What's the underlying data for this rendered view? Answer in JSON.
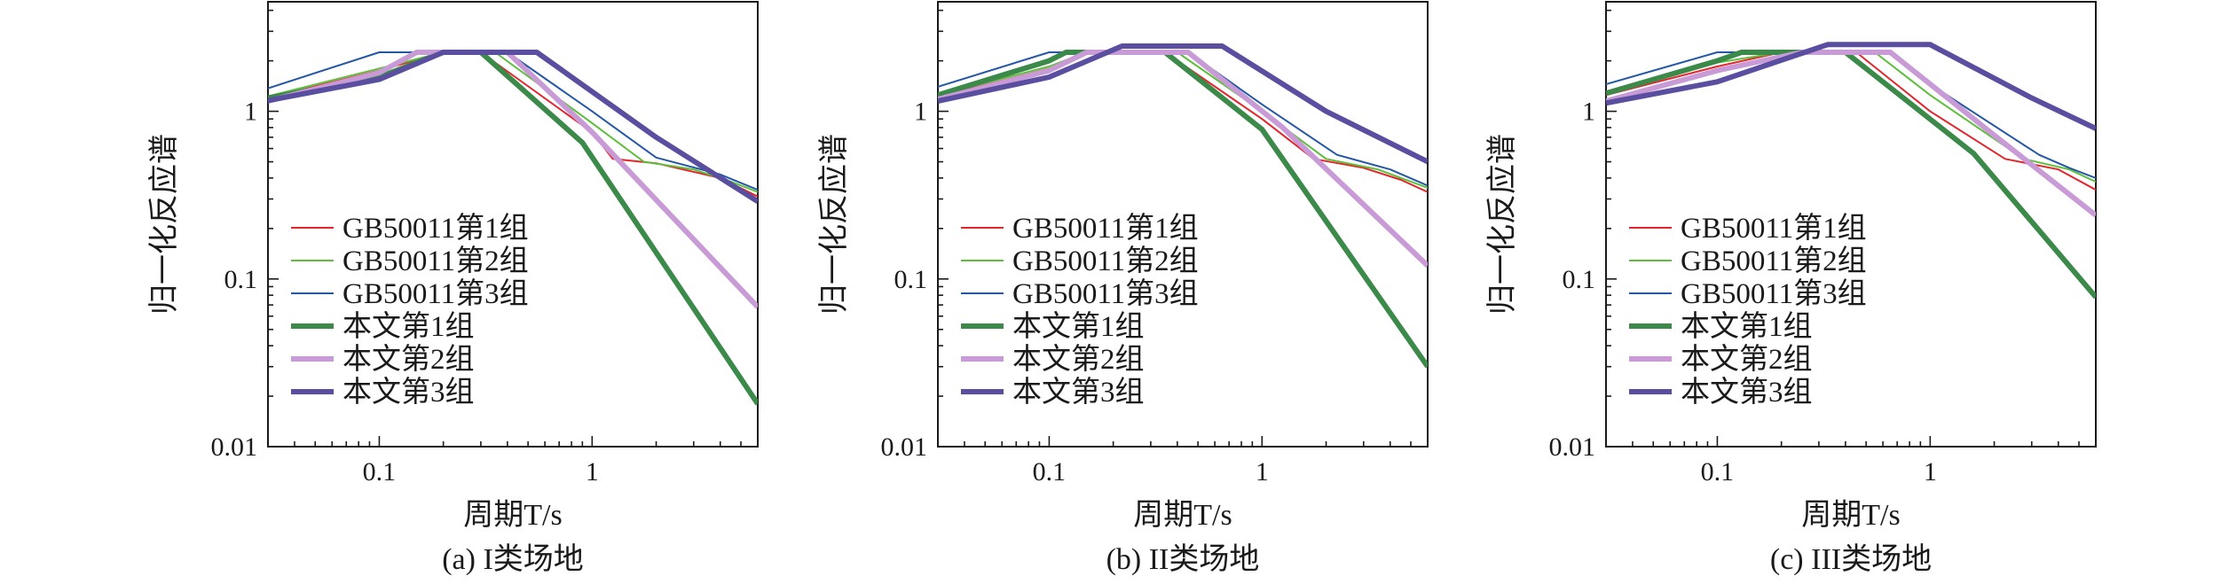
{
  "chart_data": [
    {
      "type": "line",
      "caption": "(a) I类场地",
      "xlabel": "周期T/s",
      "ylabel": "归一化反应谱",
      "xscale": "log",
      "yscale": "log",
      "xlim": [
        0.03,
        6
      ],
      "ylim": [
        0.01,
        4.5
      ],
      "xticks": [
        "0.1",
        "1"
      ],
      "yticks": [
        "0.01",
        "0.1",
        "1"
      ],
      "legend": "lower-left",
      "series": [
        {
          "name": "GB50011第1组",
          "color": "#e3262b",
          "width": 2,
          "points": [
            [
              0.03,
              1.2
            ],
            [
              0.1,
              1.75
            ],
            [
              0.2,
              2.25
            ],
            [
              0.25,
              2.25
            ],
            [
              0.3,
              2.25
            ],
            [
              1.0,
              0.75
            ],
            [
              1.25,
              0.52
            ],
            [
              2.0,
              0.49
            ],
            [
              4.0,
              0.4
            ],
            [
              6.0,
              0.31
            ]
          ]
        },
        {
          "name": "GB50011第2组",
          "color": "#5cbf3c",
          "width": 2,
          "points": [
            [
              0.03,
              1.23
            ],
            [
              0.1,
              1.8
            ],
            [
              0.2,
              2.25
            ],
            [
              0.35,
              2.25
            ],
            [
              1.0,
              0.85
            ],
            [
              1.75,
              0.5
            ],
            [
              3.0,
              0.45
            ],
            [
              4.5,
              0.38
            ],
            [
              6.0,
              0.33
            ]
          ]
        },
        {
          "name": "GB50011第3组",
          "color": "#2457a6",
          "width": 2,
          "points": [
            [
              0.03,
              1.37
            ],
            [
              0.1,
              2.25
            ],
            [
              0.4,
              2.25
            ],
            [
              1.0,
              1.0
            ],
            [
              2.0,
              0.53
            ],
            [
              4.0,
              0.42
            ],
            [
              6.0,
              0.34
            ]
          ]
        },
        {
          "name": "本文第1组",
          "color": "#3b8a4a",
          "width": 6,
          "points": [
            [
              0.03,
              1.2
            ],
            [
              0.1,
              1.6
            ],
            [
              0.2,
              2.25
            ],
            [
              0.3,
              2.25
            ],
            [
              0.9,
              0.65
            ],
            [
              6.0,
              0.018
            ]
          ]
        },
        {
          "name": "本文第2组",
          "color": "#c89ad6",
          "width": 6,
          "points": [
            [
              0.03,
              1.15
            ],
            [
              0.1,
              1.7
            ],
            [
              0.15,
              2.25
            ],
            [
              0.4,
              2.25
            ],
            [
              1.0,
              0.75
            ],
            [
              6.0,
              0.068
            ]
          ]
        },
        {
          "name": "本文第3组",
          "color": "#5a4ea0",
          "width": 6,
          "points": [
            [
              0.03,
              1.16
            ],
            [
              0.1,
              1.55
            ],
            [
              0.2,
              2.25
            ],
            [
              0.55,
              2.25
            ],
            [
              2.0,
              0.7
            ],
            [
              6.0,
              0.29
            ]
          ]
        }
      ]
    },
    {
      "type": "line",
      "caption": "(b) II类场地",
      "xlabel": "周期T/s",
      "ylabel": "归一化反应谱",
      "xscale": "log",
      "yscale": "log",
      "xlim": [
        0.03,
        6
      ],
      "ylim": [
        0.01,
        4.5
      ],
      "xticks": [
        "0.1",
        "1"
      ],
      "yticks": [
        "0.01",
        "0.1",
        "1"
      ],
      "legend": "lower-left",
      "series": [
        {
          "name": "GB50011第1组",
          "color": "#e3262b",
          "width": 2,
          "points": [
            [
              0.03,
              1.22
            ],
            [
              0.1,
              1.8
            ],
            [
              0.15,
              2.25
            ],
            [
              0.35,
              2.25
            ],
            [
              1.0,
              0.9
            ],
            [
              1.75,
              0.52
            ],
            [
              3.0,
              0.46
            ],
            [
              4.5,
              0.39
            ],
            [
              6.0,
              0.33
            ]
          ]
        },
        {
          "name": "GB50011第2组",
          "color": "#5cbf3c",
          "width": 2,
          "points": [
            [
              0.03,
              1.25
            ],
            [
              0.1,
              1.85
            ],
            [
              0.15,
              2.25
            ],
            [
              0.4,
              2.25
            ],
            [
              1.0,
              1.0
            ],
            [
              2.0,
              0.52
            ],
            [
              3.5,
              0.45
            ],
            [
              6.0,
              0.35
            ]
          ]
        },
        {
          "name": "GB50011第3组",
          "color": "#2457a6",
          "width": 2,
          "points": [
            [
              0.03,
              1.4
            ],
            [
              0.1,
              2.25
            ],
            [
              0.45,
              2.25
            ],
            [
              1.0,
              1.1
            ],
            [
              2.25,
              0.55
            ],
            [
              4.0,
              0.45
            ],
            [
              6.0,
              0.36
            ]
          ]
        },
        {
          "name": "本文第1组",
          "color": "#3b8a4a",
          "width": 6,
          "points": [
            [
              0.03,
              1.25
            ],
            [
              0.1,
              2.0
            ],
            [
              0.12,
              2.25
            ],
            [
              0.35,
              2.25
            ],
            [
              1.0,
              0.78
            ],
            [
              6.0,
              0.03
            ]
          ]
        },
        {
          "name": "本文第2组",
          "color": "#c89ad6",
          "width": 6,
          "points": [
            [
              0.03,
              1.18
            ],
            [
              0.1,
              1.75
            ],
            [
              0.15,
              2.25
            ],
            [
              0.45,
              2.25
            ],
            [
              1.25,
              0.8
            ],
            [
              6.0,
              0.12
            ]
          ]
        },
        {
          "name": "本文第3组",
          "color": "#5a4ea0",
          "width": 6,
          "points": [
            [
              0.03,
              1.15
            ],
            [
              0.1,
              1.6
            ],
            [
              0.22,
              2.45
            ],
            [
              0.65,
              2.45
            ],
            [
              2.0,
              1.0
            ],
            [
              6.0,
              0.5
            ]
          ]
        }
      ]
    },
    {
      "type": "line",
      "caption": "(c) III类场地",
      "xlabel": "周期T/s",
      "ylabel": "归一化反应谱",
      "xscale": "log",
      "yscale": "log",
      "xlim": [
        0.03,
        6
      ],
      "ylim": [
        0.01,
        4.5
      ],
      "xticks": [
        "0.1",
        "1"
      ],
      "yticks": [
        "0.01",
        "0.1",
        "1"
      ],
      "legend": "lower-left",
      "series": [
        {
          "name": "GB50011第1组",
          "color": "#e3262b",
          "width": 2,
          "points": [
            [
              0.03,
              1.25
            ],
            [
              0.1,
              1.85
            ],
            [
              0.2,
              2.25
            ],
            [
              0.45,
              2.25
            ],
            [
              1.0,
              1.0
            ],
            [
              2.25,
              0.52
            ],
            [
              4.0,
              0.45
            ],
            [
              6.0,
              0.34
            ]
          ]
        },
        {
          "name": "GB50011第2组",
          "color": "#5cbf3c",
          "width": 2,
          "points": [
            [
              0.03,
              1.3
            ],
            [
              0.1,
              1.95
            ],
            [
              0.2,
              2.25
            ],
            [
              0.55,
              2.25
            ],
            [
              1.0,
              1.25
            ],
            [
              2.75,
              0.52
            ],
            [
              4.5,
              0.45
            ],
            [
              6.0,
              0.38
            ]
          ]
        },
        {
          "name": "GB50011第3组",
          "color": "#2457a6",
          "width": 2,
          "points": [
            [
              0.03,
              1.45
            ],
            [
              0.1,
              2.25
            ],
            [
              0.65,
              2.25
            ],
            [
              1.0,
              1.45
            ],
            [
              3.25,
              0.55
            ],
            [
              4.5,
              0.46
            ],
            [
              6.0,
              0.4
            ]
          ]
        },
        {
          "name": "本文第1组",
          "color": "#3b8a4a",
          "width": 6,
          "points": [
            [
              0.03,
              1.28
            ],
            [
              0.1,
              2.0
            ],
            [
              0.13,
              2.25
            ],
            [
              0.4,
              2.25
            ],
            [
              1.6,
              0.56
            ],
            [
              6.0,
              0.078
            ]
          ]
        },
        {
          "name": "本文第2组",
          "color": "#c89ad6",
          "width": 6,
          "points": [
            [
              0.03,
              1.15
            ],
            [
              0.1,
              1.75
            ],
            [
              0.25,
              2.25
            ],
            [
              0.65,
              2.25
            ],
            [
              2.0,
              0.72
            ],
            [
              6.0,
              0.24
            ]
          ]
        },
        {
          "name": "本文第3组",
          "color": "#5a4ea0",
          "width": 6,
          "points": [
            [
              0.03,
              1.12
            ],
            [
              0.1,
              1.5
            ],
            [
              0.33,
              2.5
            ],
            [
              1.0,
              2.5
            ],
            [
              3.0,
              1.2
            ],
            [
              6.0,
              0.79
            ]
          ]
        }
      ]
    }
  ]
}
